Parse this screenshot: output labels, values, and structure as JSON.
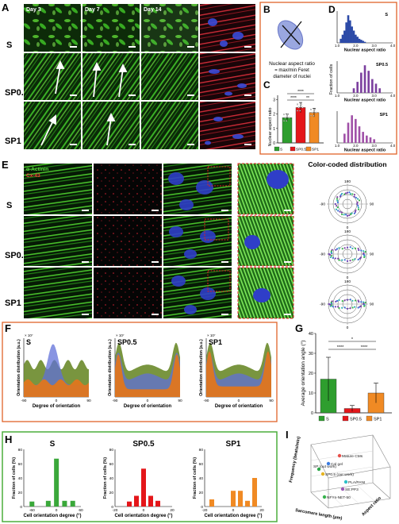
{
  "panel_labels": {
    "A": "A",
    "B": "B",
    "C": "C",
    "D": "D",
    "E": "E",
    "F": "F",
    "G": "G",
    "H": "H",
    "I": "I"
  },
  "panelA": {
    "days": [
      "Day 3",
      "Day 7",
      "Day 14"
    ],
    "rows": [
      "S",
      "SP0.5",
      "SP1"
    ]
  },
  "panelB": {
    "caption_l1": "Nuclear aspect ratio",
    "caption_l2": "= max/min Feret",
    "caption_l3": "diameter of nuclei"
  },
  "panelC": {
    "ylabel": "Nuclear aspect ratio",
    "yticks": [
      "0",
      "1",
      "2",
      "3"
    ],
    "sig_marks": [
      "****",
      "**",
      "****"
    ],
    "chart_data": {
      "type": "bar",
      "categories": [
        "S",
        "SP0.5",
        "SP1"
      ],
      "values": [
        1.75,
        2.45,
        2.1
      ],
      "errors": [
        0.25,
        0.35,
        0.3
      ],
      "ylim": [
        0,
        3.3
      ],
      "colors": [
        "#2e9e2e",
        "#e4161a",
        "#f08a24"
      ]
    }
  },
  "panelD": {
    "xlabel": "Nuclear aspect ratio",
    "ylabel": "Fraction of cells",
    "titles": [
      "S",
      "SP0.5",
      "SP1"
    ],
    "xticks": [
      "1.0",
      "2.0",
      "3.0",
      "4.0"
    ],
    "chart_data": [
      {
        "type": "bar",
        "title": "S",
        "color": "#2c4aa8",
        "x": [
          1.2,
          1.3,
          1.4,
          1.5,
          1.6,
          1.7,
          1.8,
          1.9,
          2.0,
          2.1,
          2.2,
          2.3,
          2.4,
          2.5
        ],
        "values": [
          0.04,
          0.08,
          0.12,
          0.2,
          0.27,
          0.22,
          0.16,
          0.12,
          0.08,
          0.06,
          0.04,
          0.03,
          0.02,
          0.01
        ]
      },
      {
        "type": "bar",
        "title": "SP0.5",
        "color": "#7b3f9e",
        "x": [
          1.9,
          2.1,
          2.3,
          2.5,
          2.7,
          2.9,
          3.1,
          3.3
        ],
        "values": [
          0.05,
          0.12,
          0.22,
          0.3,
          0.24,
          0.15,
          0.1,
          0.05
        ]
      },
      {
        "type": "bar",
        "title": "SP1",
        "color": "#a050a8",
        "x": [
          1.4,
          1.6,
          1.8,
          2.0,
          2.2,
          2.4,
          2.6,
          2.8,
          3.0
        ],
        "values": [
          0.1,
          0.22,
          0.3,
          0.26,
          0.18,
          0.12,
          0.08,
          0.06,
          0.04
        ]
      }
    ]
  },
  "panelE": {
    "legend_l1": "α-Actinin",
    "legend_l2": "Cx-43",
    "rows": [
      "S",
      "SP0.5",
      "SP1"
    ],
    "polar_title": "Color-coded distribution",
    "polar_labels": {
      "top": "180",
      "bottom": "0",
      "left": "-90",
      "right": "90"
    }
  },
  "panelF": {
    "titles": [
      "S",
      "SP0.5",
      "SP1"
    ],
    "xlabel": "Degree of orientation",
    "ylabel": "Orientation distribution (a.u.)",
    "xticks": [
      "-90",
      "0",
      "90"
    ],
    "exponent": "× 10⁷"
  },
  "panelG": {
    "ylabel": "Average orientation angle (°)",
    "yticks": [
      "0",
      "10",
      "20",
      "30",
      "40"
    ],
    "sig_marks": [
      "****",
      "*",
      "****"
    ],
    "chart_data": {
      "type": "bar",
      "categories": [
        "S",
        "SP0.5",
        "SP1"
      ],
      "values": [
        17,
        2.2,
        10
      ],
      "errors": [
        11,
        1.5,
        5
      ],
      "ylim": [
        0,
        40
      ],
      "colors": [
        "#2e9e2e",
        "#e4161a",
        "#f08a24"
      ]
    }
  },
  "panelH": {
    "titles": [
      "S",
      "SP0.5",
      "SP1"
    ],
    "xlabel": "Cell orientation degree (°)",
    "ylabel": "Fraction of cells (%)",
    "yticks": [
      "0",
      "20",
      "40",
      "60",
      "80"
    ],
    "xticks_s": [
      "-60",
      "0",
      "60"
    ],
    "xticks_sp05": [
      "-20",
      "0",
      "20"
    ],
    "xticks_sp1": [
      "-20",
      "0",
      "20"
    ],
    "chart_data": [
      {
        "type": "bar",
        "title": "S",
        "color": "#3aa83a",
        "x": [
          -60,
          -20,
          0,
          20,
          40
        ],
        "values": [
          7,
          8,
          67,
          8,
          8
        ]
      },
      {
        "type": "bar",
        "title": "SP0.5",
        "color": "#e4161a",
        "x": [
          -10,
          -5,
          0,
          5,
          10
        ],
        "values": [
          7,
          15,
          53,
          15,
          8
        ]
      },
      {
        "type": "bar",
        "title": "SP1",
        "color": "#f08a24",
        "x": [
          -15,
          0,
          5,
          10,
          15
        ],
        "values": [
          10,
          22,
          22,
          8,
          40
        ]
      }
    ]
  },
  "panelI": {
    "zlabel": "Frequency (beats/min)",
    "xlabel": "Sarcomere length (μm)",
    "ylabel": "Aspect ratio",
    "points": [
      "Mature CMs",
      "Col gel",
      "SP (out work)",
      "SP0.5 (our work)",
      "PLA/PANI",
      "SE:PP3",
      "NFYs-NET-50"
    ]
  }
}
